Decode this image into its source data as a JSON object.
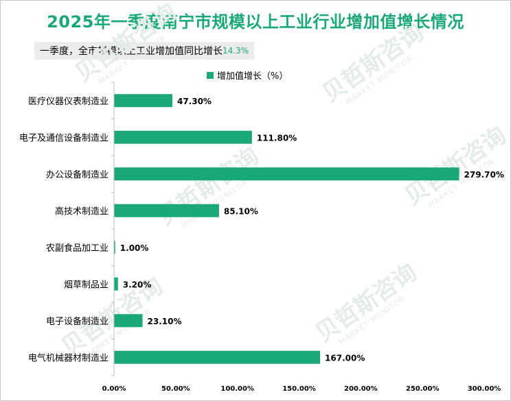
{
  "title": "2025年一季度南宁市规模以上工业行业增加值增长情况",
  "subtitle": {
    "text": "一季度，全市规模以上工业增加值同比增长",
    "value": "14.3%"
  },
  "watermark": {
    "brand": "贝哲斯咨询",
    "brand_en": "MARKET MONITOR"
  },
  "colors": {
    "bar": "#1aa876",
    "title": "#1aa876",
    "axis": "#bfbfbf"
  },
  "chart_data": {
    "type": "bar",
    "orientation": "horizontal",
    "legend": {
      "label": "增加值增长（%）",
      "position": "top"
    },
    "categories": [
      "医疗仪器仪表制造业",
      "电子及通信设备制造业",
      "办公设备制造业",
      "高技术制造业",
      "农副食品加工业",
      "烟草制品业",
      "电子设备制造业",
      "电气机械器材制造业"
    ],
    "values": [
      47.3,
      111.8,
      279.7,
      85.1,
      1.0,
      3.2,
      23.1,
      167.0
    ],
    "value_labels": [
      "47.30%",
      "111.80%",
      "279.70%",
      "85.10%",
      "1.00%",
      "3.20%",
      "23.10%",
      "167.00%"
    ],
    "xlim": [
      0,
      300
    ],
    "xticks": [
      0,
      50,
      100,
      150,
      200,
      250,
      300
    ],
    "xtick_labels": [
      "0.00%",
      "50.00%",
      "100.00%",
      "150.00%",
      "200.00%",
      "250.00%",
      "300.00%"
    ],
    "grid": false
  }
}
